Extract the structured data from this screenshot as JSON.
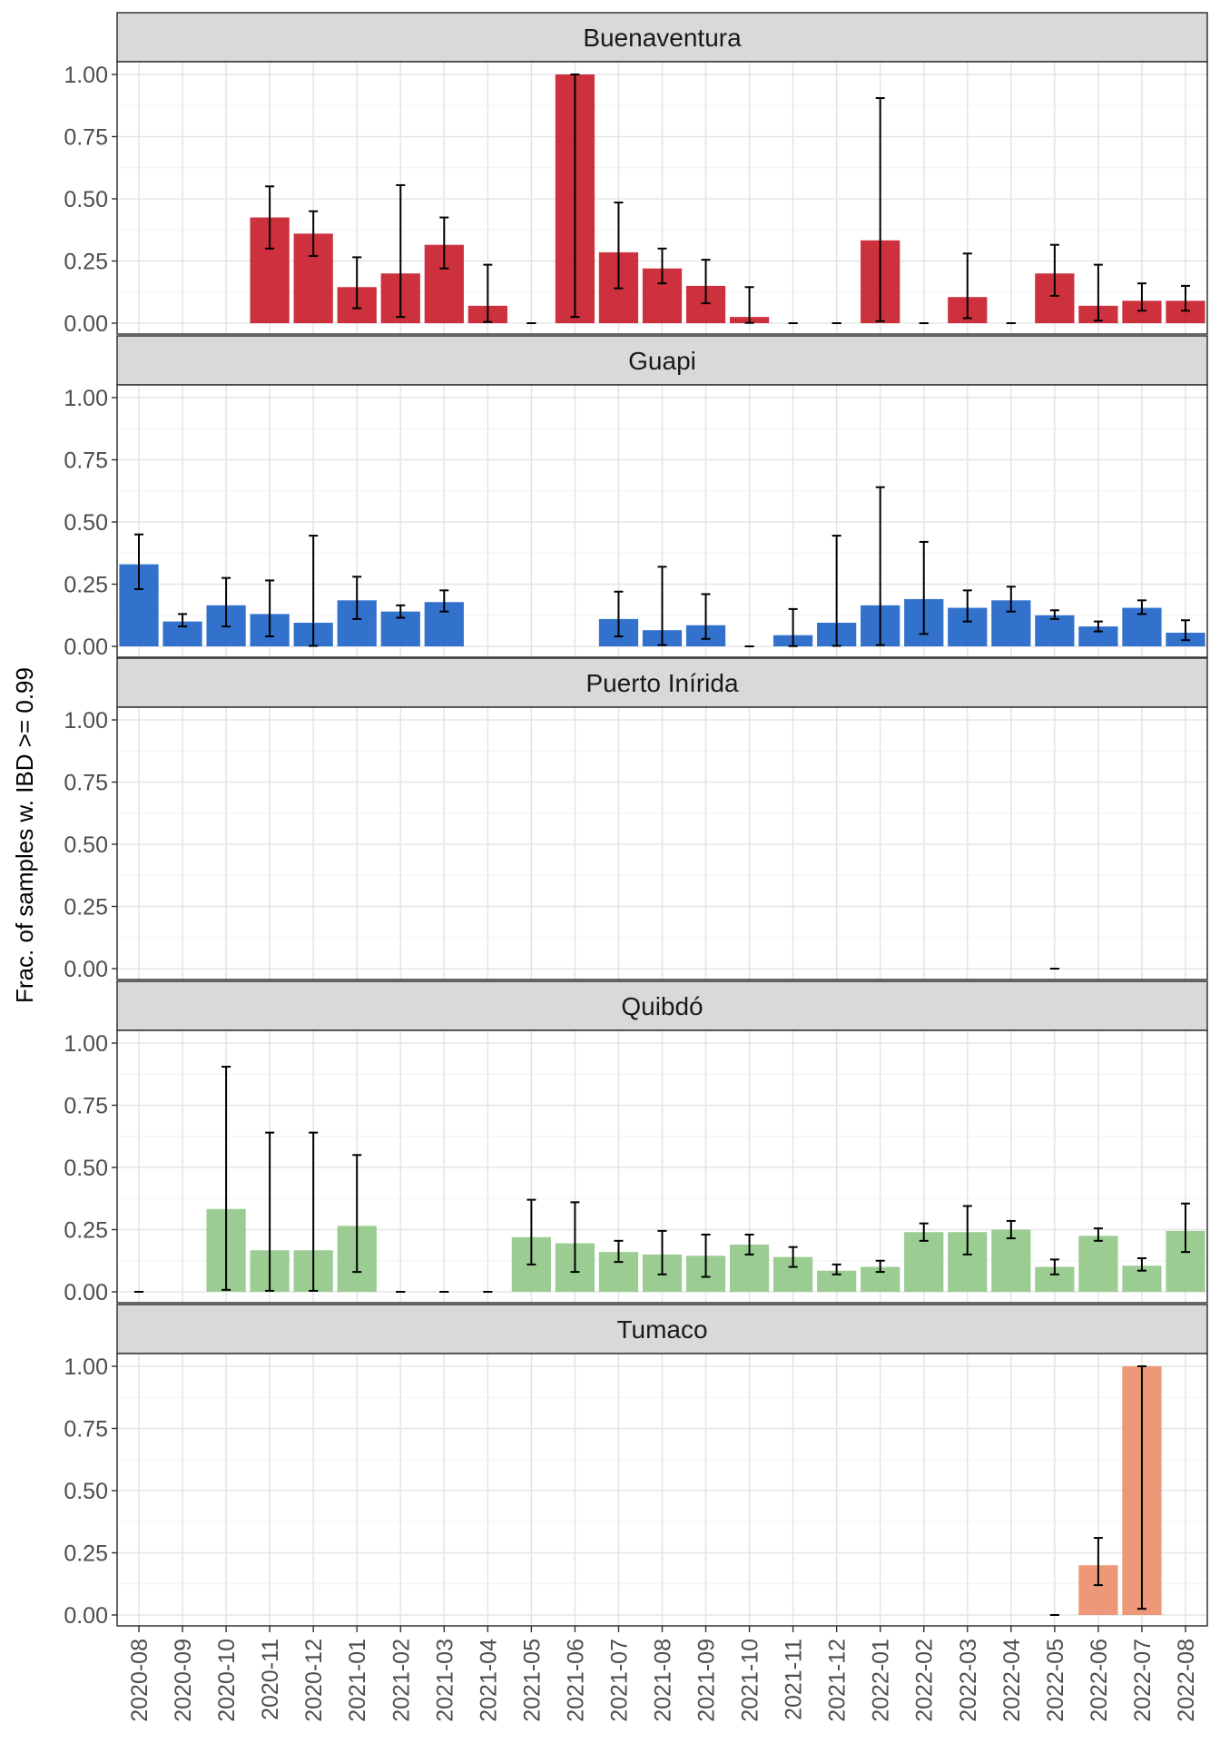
{
  "chart_data": {
    "type": "bar",
    "ylabel": "Frac. of samples w. IBD >= 0.99",
    "xlabel": "",
    "ylim": [
      0,
      1
    ],
    "yticks": [
      "0.00",
      "0.25",
      "0.50",
      "0.75",
      "1.00"
    ],
    "yticks_values": [
      0,
      0.25,
      0.5,
      0.75,
      1.0
    ],
    "categories": [
      "2020-08",
      "2020-09",
      "2020-10",
      "2020-11",
      "2020-12",
      "2021-01",
      "2021-02",
      "2021-03",
      "2021-04",
      "2021-05",
      "2021-06",
      "2021-07",
      "2021-08",
      "2021-09",
      "2021-10",
      "2021-11",
      "2021-12",
      "2022-01",
      "2022-02",
      "2022-03",
      "2022-04",
      "2022-05",
      "2022-06",
      "2022-07",
      "2022-08"
    ],
    "grid": true,
    "error_bars": true,
    "panels": [
      {
        "name": "Buenaventura",
        "color": "#C8202C",
        "values": [
          null,
          null,
          null,
          0.425,
          0.36,
          0.145,
          0.2,
          0.315,
          0.07,
          0,
          1.0,
          0.285,
          0.22,
          0.15,
          0.025,
          0,
          0,
          0.333,
          0,
          0.105,
          0,
          0.2,
          0.07,
          0.09,
          0.09
        ],
        "err_low": [
          null,
          null,
          null,
          0.3,
          0.27,
          0.06,
          0.025,
          0.22,
          0.005,
          0,
          0.025,
          0.14,
          0.16,
          0.08,
          0.001,
          0,
          0,
          0.008,
          0,
          0.02,
          0,
          0.11,
          0.01,
          0.05,
          0.05
        ],
        "err_high": [
          null,
          null,
          null,
          0.55,
          0.45,
          0.265,
          0.555,
          0.425,
          0.235,
          0,
          1.0,
          0.485,
          0.3,
          0.255,
          0.145,
          0,
          0,
          0.905,
          0,
          0.28,
          0,
          0.315,
          0.235,
          0.16,
          0.15
        ]
      },
      {
        "name": "Guapi",
        "color": "#2166C8",
        "values": [
          0.33,
          0.1,
          0.165,
          0.13,
          0.095,
          0.185,
          0.14,
          0.178,
          null,
          null,
          null,
          0.11,
          0.065,
          0.085,
          0,
          0.045,
          0.095,
          0.165,
          0.19,
          0.155,
          0.185,
          0.125,
          0.08,
          0.155,
          0.055
        ],
        "err_low": [
          0.23,
          0.08,
          0.08,
          0.04,
          0.002,
          0.11,
          0.115,
          0.14,
          null,
          null,
          null,
          0.04,
          0.005,
          0.03,
          0,
          0.001,
          0.002,
          0.005,
          0.05,
          0.1,
          0.14,
          0.11,
          0.06,
          0.13,
          0.025
        ],
        "err_high": [
          0.45,
          0.13,
          0.275,
          0.265,
          0.445,
          0.28,
          0.165,
          0.225,
          null,
          null,
          null,
          0.22,
          0.32,
          0.21,
          0,
          0.15,
          0.445,
          0.64,
          0.42,
          0.225,
          0.24,
          0.145,
          0.1,
          0.185,
          0.105
        ]
      },
      {
        "name": "Puerto Inírida",
        "color": "#CCCCCC",
        "values": [
          null,
          null,
          null,
          null,
          null,
          null,
          null,
          null,
          null,
          null,
          null,
          null,
          null,
          null,
          null,
          null,
          null,
          null,
          null,
          null,
          null,
          0,
          null,
          null,
          null
        ],
        "err_low": [
          null,
          null,
          null,
          null,
          null,
          null,
          null,
          null,
          null,
          null,
          null,
          null,
          null,
          null,
          null,
          null,
          null,
          null,
          null,
          null,
          null,
          0,
          null,
          null,
          null
        ],
        "err_high": [
          null,
          null,
          null,
          null,
          null,
          null,
          null,
          null,
          null,
          null,
          null,
          null,
          null,
          null,
          null,
          null,
          null,
          null,
          null,
          null,
          null,
          0,
          null,
          null,
          null
        ]
      },
      {
        "name": "Quibdó",
        "color": "#93C98A",
        "values": [
          0,
          null,
          0.333,
          0.167,
          0.167,
          0.265,
          0,
          0,
          0,
          0.22,
          0.195,
          0.16,
          0.15,
          0.145,
          0.19,
          0.14,
          0.085,
          0.1,
          0.24,
          0.24,
          0.25,
          0.1,
          0.225,
          0.105,
          0.245
        ],
        "err_low": [
          0,
          null,
          0.008,
          0.004,
          0.004,
          0.08,
          0,
          0,
          0,
          0.11,
          0.08,
          0.12,
          0.07,
          0.06,
          0.15,
          0.1,
          0.07,
          0.08,
          0.205,
          0.15,
          0.215,
          0.07,
          0.205,
          0.085,
          0.16
        ],
        "err_high": [
          0,
          null,
          0.905,
          0.64,
          0.64,
          0.55,
          0,
          0,
          0,
          0.37,
          0.36,
          0.205,
          0.245,
          0.23,
          0.23,
          0.18,
          0.11,
          0.125,
          0.275,
          0.345,
          0.285,
          0.13,
          0.255,
          0.135,
          0.355
        ]
      },
      {
        "name": "Tumaco",
        "color": "#EA8F6E",
        "values": [
          null,
          null,
          null,
          null,
          null,
          null,
          null,
          null,
          null,
          null,
          null,
          null,
          null,
          null,
          null,
          null,
          null,
          null,
          null,
          null,
          null,
          0,
          0.2,
          1.0,
          null
        ],
        "err_low": [
          null,
          null,
          null,
          null,
          null,
          null,
          null,
          null,
          null,
          null,
          null,
          null,
          null,
          null,
          null,
          null,
          null,
          null,
          null,
          null,
          null,
          0,
          0.12,
          0.025,
          null
        ],
        "err_high": [
          null,
          null,
          null,
          null,
          null,
          null,
          null,
          null,
          null,
          null,
          null,
          null,
          null,
          null,
          null,
          null,
          null,
          null,
          null,
          null,
          null,
          0,
          0.31,
          1.0,
          null
        ]
      }
    ]
  }
}
